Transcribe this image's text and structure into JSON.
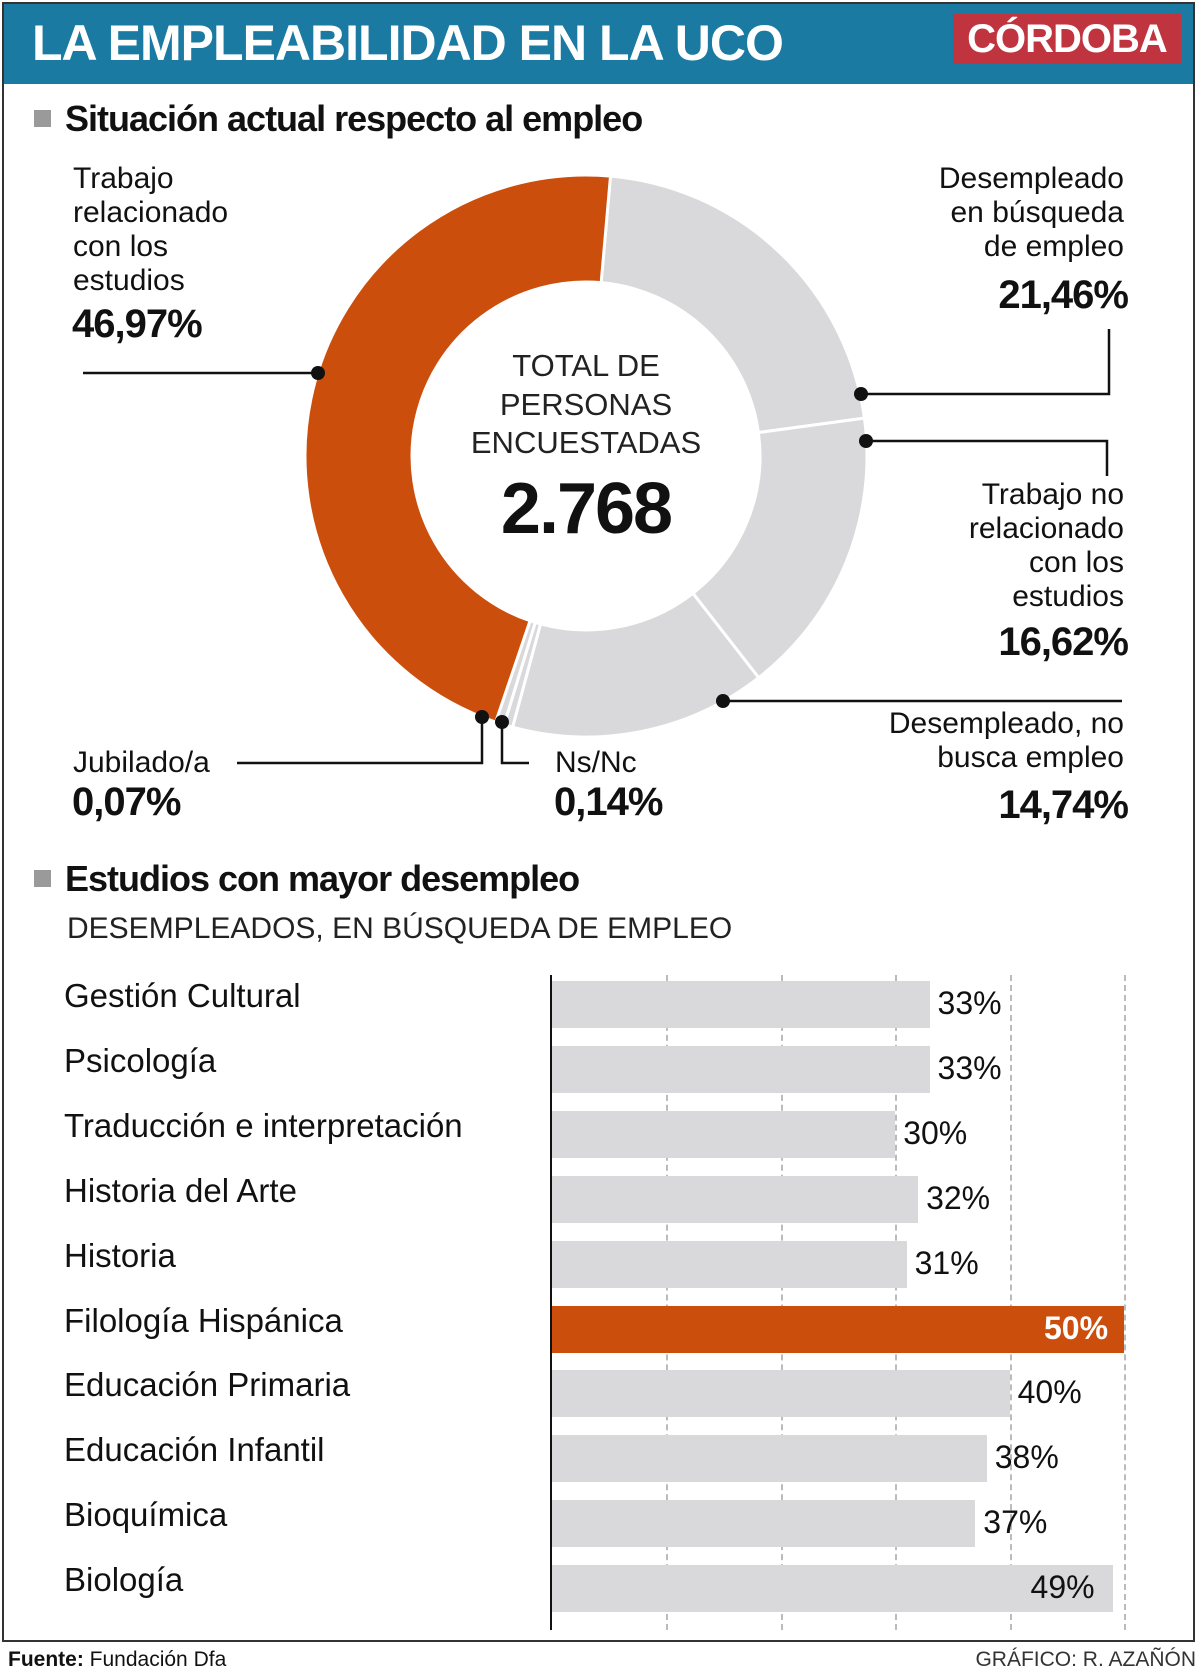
{
  "header": {
    "title": "LA EMPLEABILIDAD EN LA UCO",
    "brand": "CÓRDOBA"
  },
  "colors": {
    "header_bg": "#1a7aa1",
    "brand_bg": "#c0343f",
    "accent": "#cc4e0c",
    "gray": "#d9d8da"
  },
  "chart_data": [
    {
      "type": "pie",
      "title": "Situación actual respecto al empleo",
      "center": {
        "line1": "TOTAL DE",
        "line2": "PERSONAS",
        "line3": "ENCUESTADAS",
        "total": "2.768"
      },
      "slices": [
        {
          "label_lines": [
            "Desempleado",
            "en búsqueda",
            "de empleo"
          ],
          "value": 21.46,
          "pct": "21,46%",
          "highlight": false
        },
        {
          "label_lines": [
            "Trabajo no",
            "relacionado",
            "con los",
            "estudios"
          ],
          "value": 16.62,
          "pct": "16,62%",
          "highlight": false
        },
        {
          "label_lines": [
            "Desempleado, no",
            "busca empleo"
          ],
          "value": 14.74,
          "pct": "14,74%",
          "highlight": false
        },
        {
          "label_lines": [
            "Ns/Nc"
          ],
          "value": 0.14,
          "pct": "0,14%",
          "highlight": false
        },
        {
          "label_lines": [
            "Jubilado/a"
          ],
          "value": 0.07,
          "pct": "0,07%",
          "highlight": false
        },
        {
          "label_lines": [
            "Trabajo",
            "relacionado",
            "con los",
            "estudios"
          ],
          "value": 46.97,
          "pct": "46,97%",
          "highlight": true
        }
      ]
    },
    {
      "type": "bar",
      "title": "Estudios con mayor desempleo",
      "subtitle": "DESEMPLEADOS, EN BÚSQUEDA DE EMPLEO",
      "xlim": [
        0,
        50
      ],
      "grid": true,
      "categories": [
        "Gestión Cultural",
        "Psicología",
        "Traducción e interpretación",
        "Historia del Arte",
        "Historia",
        "Filología Hispánica",
        "Educación Primaria",
        "Educación Infantil",
        "Bioquímica",
        "Biología"
      ],
      "values": [
        33,
        33,
        30,
        32,
        31,
        50,
        40,
        38,
        37,
        49
      ],
      "labels": [
        "33%",
        "33%",
        "30%",
        "32%",
        "31%",
        "50%",
        "40%",
        "38%",
        "37%",
        "49%"
      ],
      "highlight_index": 5
    }
  ],
  "footer": {
    "source_label": "Fuente:",
    "source": "Fundación Dfa",
    "credit": "GRÁFICO: R. AZAÑÓN"
  }
}
